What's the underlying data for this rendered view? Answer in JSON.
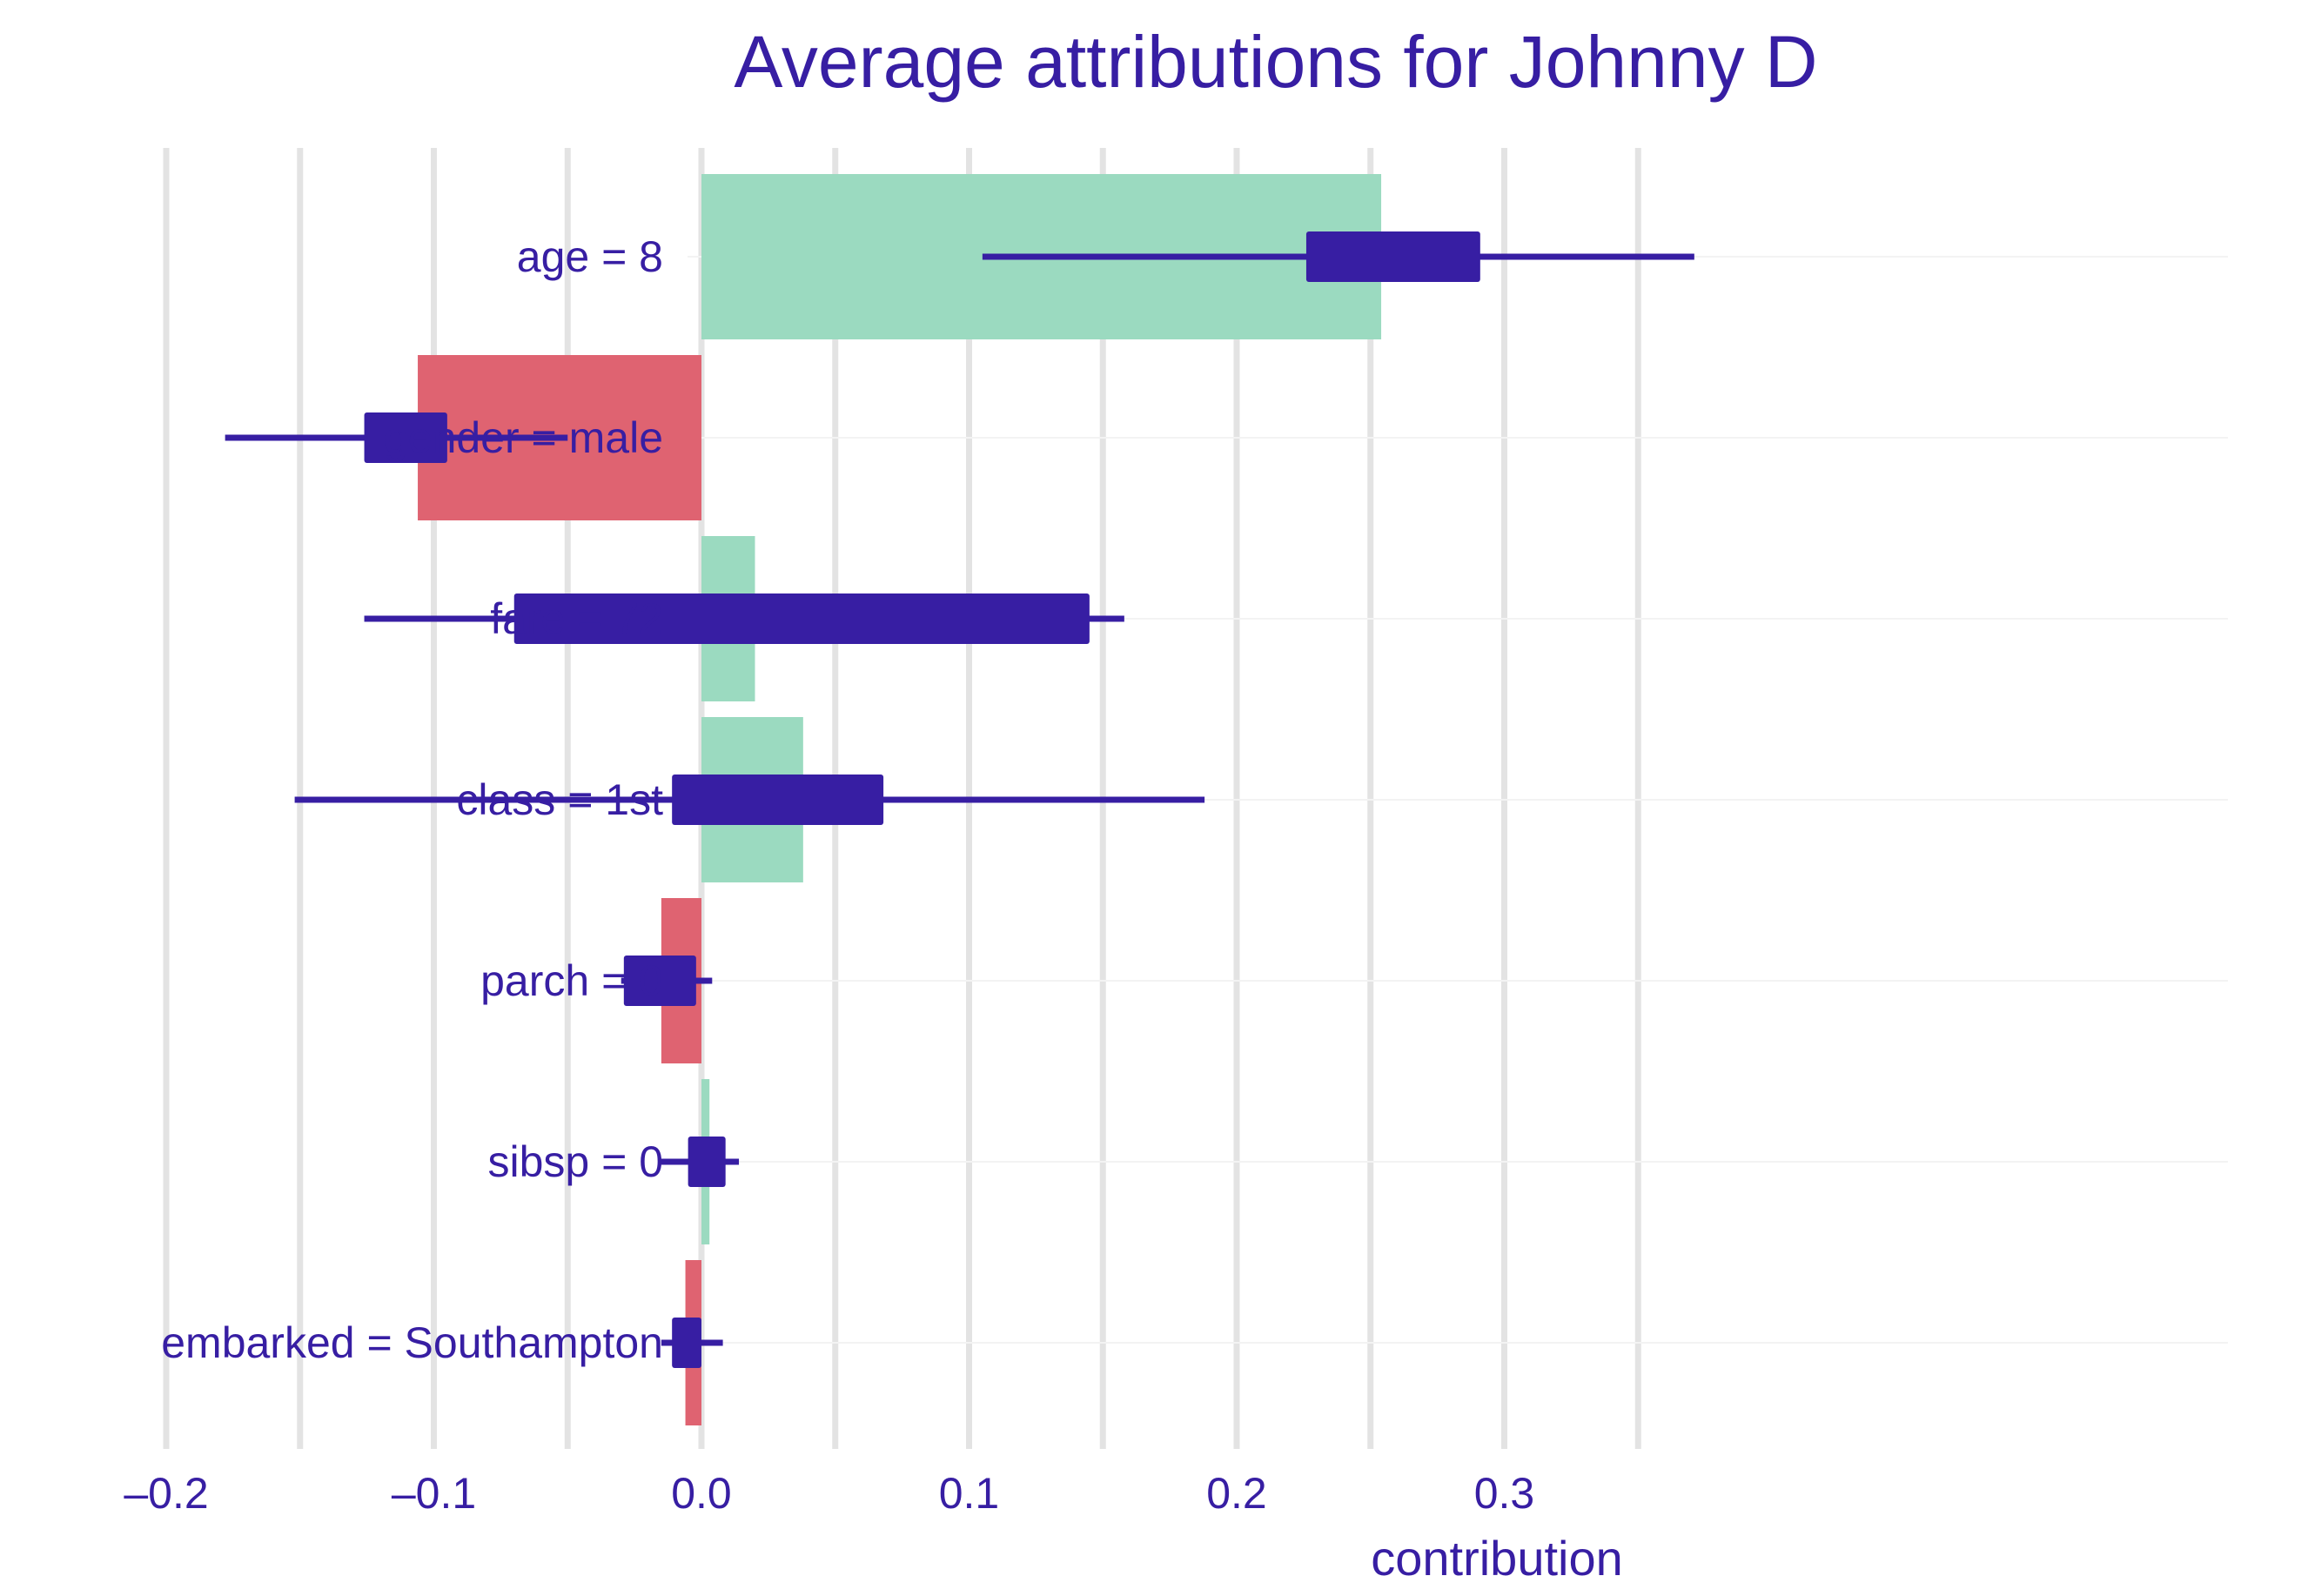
{
  "chart_data": {
    "type": "bar",
    "title": "Average attributions for Johnny D",
    "xlabel": "contribution",
    "ylabel": "",
    "xlim": [
      -0.2,
      0.37
    ],
    "x_ticks": [
      -0.2,
      -0.1,
      0.0,
      0.1,
      0.2,
      0.3
    ],
    "x_tick_labels": [
      "–0.2",
      "–0.1",
      "0.0",
      "0.1",
      "0.2",
      "0.3"
    ],
    "grid": true,
    "legend": "none",
    "colors": {
      "positive": "#9BDAC0",
      "negative": "#DF6371",
      "boxplot": "#371EA3",
      "text": "#371EA3",
      "grid": "#E3E3E3"
    },
    "categories": [
      "age = 8",
      "gender = male",
      "fare = 72",
      "class = 1st",
      "parch = 0",
      "sibsp = 0",
      "embarked = Southampton"
    ],
    "values": [
      0.254,
      -0.106,
      0.02,
      0.038,
      -0.015,
      0.003,
      -0.006
    ],
    "boxplots": [
      {
        "min": 0.105,
        "q1": 0.226,
        "q3": 0.291,
        "max": 0.371
      },
      {
        "min": -0.178,
        "q1": -0.126,
        "q3": -0.095,
        "max": -0.05
      },
      {
        "min": -0.126,
        "q1": -0.07,
        "q3": 0.145,
        "max": 0.158
      },
      {
        "min": -0.152,
        "q1": -0.011,
        "q3": 0.068,
        "max": 0.188
      },
      {
        "min": -0.03,
        "q1": -0.029,
        "q3": -0.002,
        "max": 0.004
      },
      {
        "min": -0.015,
        "q1": -0.005,
        "q3": 0.009,
        "max": 0.014
      },
      {
        "min": -0.015,
        "q1": -0.011,
        "q3": 0.0,
        "max": 0.008
      }
    ]
  }
}
